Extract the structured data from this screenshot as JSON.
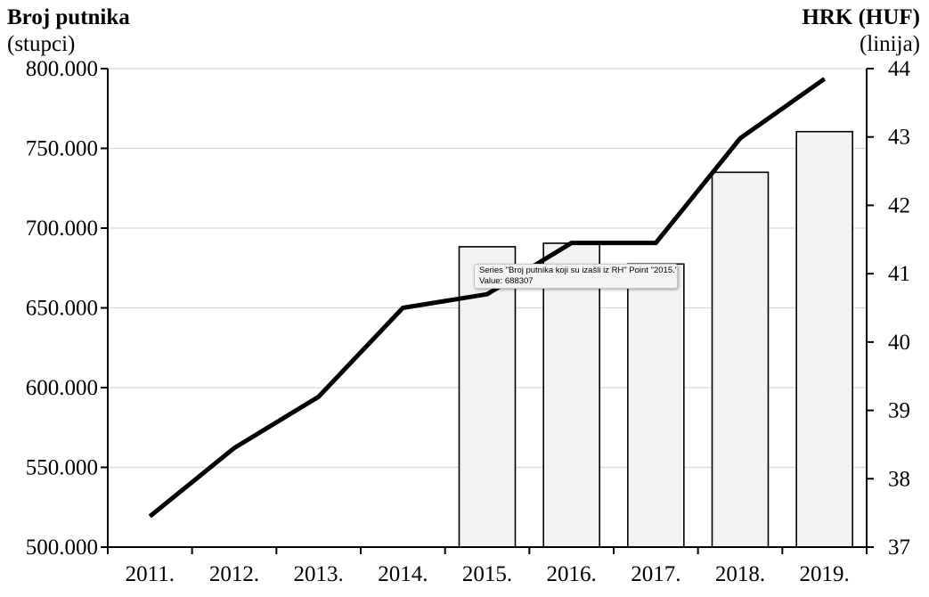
{
  "chart_data": {
    "type": "bar+line",
    "left_axis": {
      "title": "Broj putnika",
      "subtitle": "(stupci)",
      "ylim": [
        500000,
        800000
      ],
      "ticks": [
        "500.000",
        "550.000",
        "600.000",
        "650.000",
        "700.000",
        "750.000",
        "800.000"
      ],
      "tick_values": [
        500000,
        550000,
        600000,
        650000,
        700000,
        750000,
        800000
      ]
    },
    "right_axis": {
      "title": "HRK (HUF)",
      "subtitle": "(linija)",
      "ylim": [
        37,
        44
      ],
      "ticks": [
        "37",
        "38",
        "39",
        "40",
        "41",
        "42",
        "43",
        "44"
      ],
      "tick_values": [
        37,
        38,
        39,
        40,
        41,
        42,
        43,
        44
      ]
    },
    "categories": [
      "2011.",
      "2012.",
      "2013.",
      "2014.",
      "2015.",
      "2016.",
      "2017.",
      "2018.",
      "2019."
    ],
    "series": [
      {
        "name": "Broj putnika koji su izašli iz RH",
        "type": "bar",
        "axis": "left",
        "values": [
          null,
          null,
          null,
          null,
          688307,
          690500,
          677500,
          735000,
          760500
        ]
      },
      {
        "type": "line",
        "axis": "right",
        "values": [
          37.45,
          38.45,
          39.2,
          40.5,
          40.7,
          41.45,
          41.45,
          42.98,
          43.85
        ]
      }
    ],
    "grid": true,
    "tooltip": {
      "line1": "Series \"Broj putnika koji su izašli iz RH\" Point \"2015.\"",
      "line2": "Value: 688307"
    },
    "colors": {
      "bar_fill": "#f2f2f2",
      "bar_stroke": "#000000",
      "line": "#000000",
      "grid": "#d9d9d9"
    }
  }
}
